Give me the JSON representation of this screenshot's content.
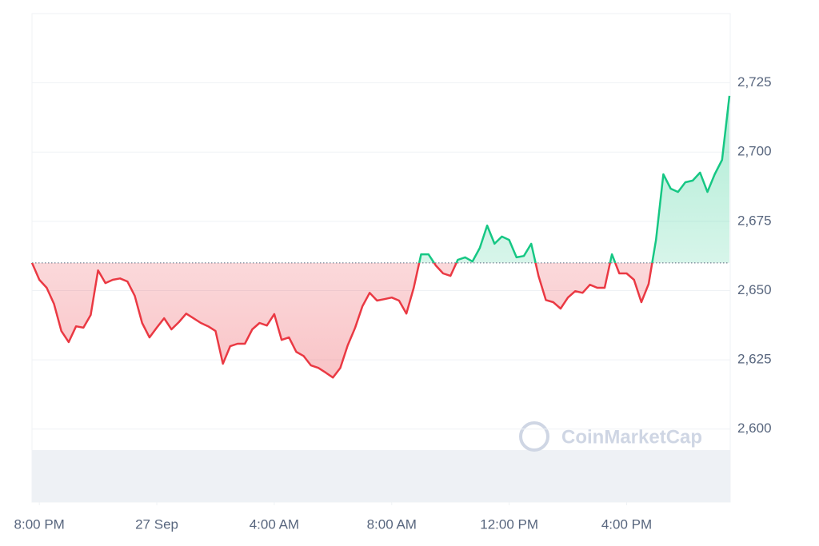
{
  "chart_data": {
    "type": "line",
    "watermark": "CoinMarketCap",
    "x": [
      -0.25,
      0,
      0.25,
      0.5,
      0.75,
      1,
      1.25,
      1.5,
      1.75,
      2,
      2.25,
      2.5,
      2.75,
      3,
      3.25,
      3.5,
      3.75,
      4,
      4.25,
      4.5,
      4.75,
      5,
      5.25,
      5.5,
      5.75,
      6,
      6.25,
      6.5,
      6.75,
      7,
      7.25,
      7.5,
      7.75,
      8,
      8.25,
      8.5,
      8.75,
      9,
      9.25,
      9.5,
      9.75,
      10,
      10.25,
      10.5,
      10.75,
      11,
      11.25,
      11.5,
      11.75,
      12,
      12.25,
      12.5,
      12.75,
      13,
      13.25,
      13.5,
      13.75,
      14,
      14.25,
      14.5,
      14.75,
      15,
      15.25,
      15.5,
      15.75,
      16,
      16.25,
      16.5,
      16.75,
      17,
      17.25,
      17.5,
      17.75,
      18,
      18.25,
      18.5,
      18.75,
      19,
      19.25,
      19.5,
      19.75,
      20,
      20.25,
      20.5,
      20.75,
      21,
      21.25,
      21.5,
      21.75,
      22,
      22.25,
      22.5,
      22.75,
      23,
      23.25,
      23.5
    ],
    "values": [
      2660,
      2653.9,
      2651,
      2645.2,
      2635.4,
      2631.4,
      2637.1,
      2636.6,
      2641.2,
      2657.3,
      2652.7,
      2653.9,
      2654.4,
      2653.3,
      2648.1,
      2638.3,
      2633.1,
      2636.6,
      2640,
      2636,
      2638.6,
      2641.7,
      2640,
      2638.3,
      2637.1,
      2635.4,
      2623.6,
      2629.9,
      2630.8,
      2630.8,
      2636,
      2638.3,
      2637.4,
      2641.5,
      2632.2,
      2633.1,
      2627.9,
      2626.4,
      2623,
      2622.1,
      2620.4,
      2618.6,
      2622.1,
      2630.2,
      2636.5,
      2644.3,
      2649.2,
      2646.4,
      2646.9,
      2647.5,
      2646.4,
      2641.7,
      2651,
      2663.1,
      2663.1,
      2659.1,
      2656.2,
      2655.3,
      2661.1,
      2662,
      2660.5,
      2665.4,
      2673.5,
      2666.9,
      2669.5,
      2668.3,
      2662,
      2662.5,
      2666.9,
      2655.3,
      2646.6,
      2645.8,
      2643.5,
      2647.5,
      2649.8,
      2649.2,
      2652.1,
      2651,
      2651,
      2663.1,
      2656.2,
      2656.2,
      2653.9,
      2645.8,
      2652.4,
      2668.3,
      2692,
      2686.8,
      2685.6,
      2689.1,
      2689.7,
      2692.6,
      2685.6,
      2692,
      2697.2,
      2720.3
    ],
    "baseline": 2660,
    "up_color": "#16c784",
    "down_color": "#ea3943",
    "xlim": [
      -0.25,
      23.5
    ],
    "xticks": [
      {
        "value": 0,
        "label": "8:00 PM"
      },
      {
        "value": 4,
        "label": "27 Sep"
      },
      {
        "value": 8,
        "label": "4:00 AM"
      },
      {
        "value": 12,
        "label": "8:00 AM"
      },
      {
        "value": 16,
        "label": "12:00 PM"
      },
      {
        "value": 20,
        "label": "4:00 PM"
      }
    ],
    "ylim": [
      2593,
      2750
    ],
    "yticks": [
      {
        "value": 2600,
        "label": "2,600"
      },
      {
        "value": 2625,
        "label": "2,625"
      },
      {
        "value": 2650,
        "label": "2,650"
      },
      {
        "value": 2675,
        "label": "2,675"
      },
      {
        "value": 2700,
        "label": "2,700"
      },
      {
        "value": 2725,
        "label": "2,725"
      }
    ],
    "grid": true
  }
}
